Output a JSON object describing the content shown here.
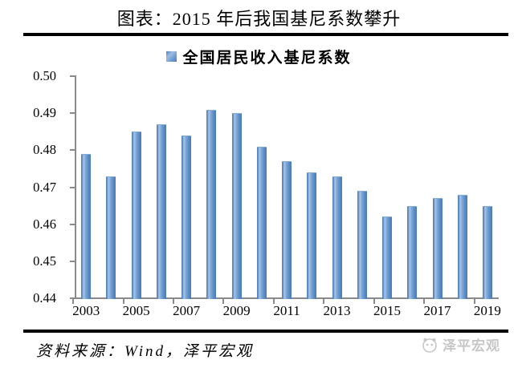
{
  "title": "图表：2015 年后我国基尼系数攀升",
  "legend": {
    "label": "全国居民收入基尼系数",
    "marker_color": "#4f81bd"
  },
  "chart_data": {
    "type": "bar",
    "title": "全国居民收入基尼系数",
    "categories": [
      "2003",
      "2004",
      "2005",
      "2006",
      "2007",
      "2008",
      "2009",
      "2010",
      "2011",
      "2012",
      "2013",
      "2014",
      "2015",
      "2016",
      "2017",
      "2018",
      "2019"
    ],
    "values": [
      0.479,
      0.473,
      0.485,
      0.487,
      0.484,
      0.491,
      0.49,
      0.481,
      0.477,
      0.474,
      0.473,
      0.469,
      0.462,
      0.465,
      0.467,
      0.468,
      0.465
    ],
    "xlabel": "",
    "ylabel": "",
    "ylim": [
      0.44,
      0.5
    ],
    "ytick_step": 0.01,
    "ytick_decimals": 2,
    "xtick_every": 2,
    "grid": false,
    "legend_position": "top",
    "bar_color": "#4f81bd",
    "bar_highlight_color": "#a9c6e6",
    "axis_color": "#8a8a8a"
  },
  "footer": {
    "source_text": "资料来源：Wind，泽平宏观",
    "watermark_text": "泽平宏观",
    "watermark_icon": "zeping-logo",
    "watermark_color": "#c7c7c7"
  }
}
